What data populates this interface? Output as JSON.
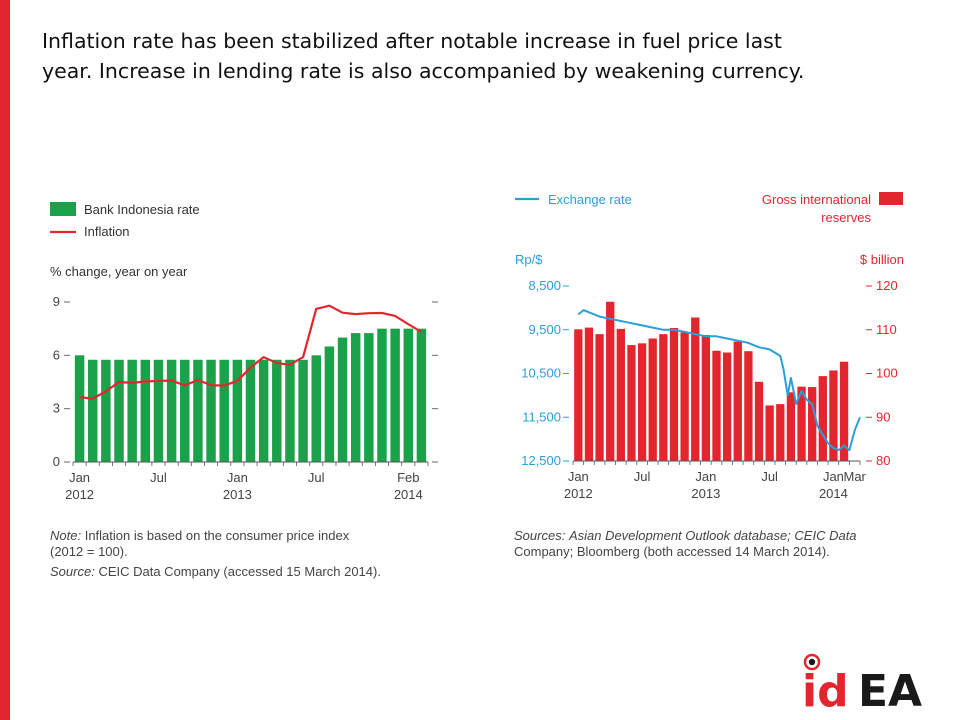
{
  "slide": {
    "headline_line1": "Inflation rate has been stabilized after notable increase in fuel price last",
    "headline_line2": "year. Increase in lending rate is also accompanied by weakening currency.",
    "accent_color": "#e3262e"
  },
  "chart_data": [
    {
      "type": "bar",
      "legend": [
        {
          "name": "Bank Indonesia rate",
          "color": "#1aa14a",
          "kind": "bar"
        },
        {
          "name": "Inflation",
          "color": "#e3262e",
          "kind": "line"
        }
      ],
      "ylabel": "% change, year on year",
      "ylim": [
        0,
        9
      ],
      "yticks": [
        "9",
        "6",
        "3",
        "0"
      ],
      "xticks": [
        {
          "line1": "Jan",
          "line2": "2012",
          "index": 0
        },
        {
          "line1": "Jul",
          "line2": "",
          "index": 6
        },
        {
          "line1": "Jan",
          "line2": "2013",
          "index": 12
        },
        {
          "line1": "Jul",
          "line2": "",
          "index": 18
        },
        {
          "line1": "Feb",
          "line2": "2014",
          "index": 25
        }
      ],
      "series": [
        {
          "name": "Bank Indonesia rate",
          "values": [
            6.0,
            5.75,
            5.75,
            5.75,
            5.75,
            5.75,
            5.75,
            5.75,
            5.75,
            5.75,
            5.75,
            5.75,
            5.75,
            5.75,
            5.75,
            5.75,
            5.75,
            5.75,
            6.0,
            6.5,
            7.0,
            7.25,
            7.25,
            7.5,
            7.5,
            7.5,
            7.5
          ]
        },
        {
          "name": "Inflation",
          "values": [
            3.65,
            3.56,
            3.97,
            4.5,
            4.45,
            4.53,
            4.56,
            4.58,
            4.31,
            4.61,
            4.32,
            4.3,
            4.57,
            5.31,
            5.9,
            5.57,
            5.47,
            5.9,
            8.61,
            8.79,
            8.4,
            8.32,
            8.37,
            8.38,
            8.22,
            7.75,
            7.32
          ]
        }
      ],
      "note": "Inflation is based on the consumer price index",
      "note_line2": "(2012 = 100).",
      "note_prefix": "Note:",
      "source_prefix": "Source:",
      "source": "CEIC Data Company (accessed 15 March 2014)."
    },
    {
      "type": "bar",
      "legend": [
        {
          "name": "Exchange rate",
          "color": "#2a9fd8",
          "kind": "line"
        },
        {
          "name": "Gross international",
          "name_line2": "reserves",
          "color": "#e3262e",
          "kind": "bar"
        }
      ],
      "ylabel_left": "Rp/$",
      "ylabel_right": "$ billion",
      "ylim_left": [
        12500,
        8500
      ],
      "ylim_right": [
        80,
        120
      ],
      "yticks_left": [
        "8,500",
        "9,500",
        "10,500",
        "11,500",
        "12,500"
      ],
      "yticks_right": [
        "120",
        "110",
        "100",
        "90",
        "80"
      ],
      "xticks": [
        {
          "line1": "Jan",
          "line2": "2012",
          "index": 0
        },
        {
          "line1": "Jul",
          "line2": "",
          "index": 6
        },
        {
          "line1": "Jan",
          "line2": "2013",
          "index": 12
        },
        {
          "line1": "Jul",
          "line2": "",
          "index": 18
        },
        {
          "line1": "Jan",
          "line2": "2014",
          "index": 24
        },
        {
          "line1": "Mar",
          "line2": "",
          "index": 26
        }
      ],
      "series": [
        {
          "name": "Gross international reserves",
          "axis": "right",
          "values": [
            110.1,
            110.5,
            109.0,
            116.4,
            110.2,
            106.5,
            106.9,
            108.0,
            109.0,
            110.4,
            109.4,
            112.8,
            108.8,
            105.2,
            104.8,
            107.3,
            105.1,
            98.1,
            92.7,
            93.0,
            95.7,
            97.0,
            96.9,
            99.4,
            100.7,
            102.7
          ]
        },
        {
          "name": "Exchange rate",
          "axis": "left",
          "points": [
            [
              0,
              9150
            ],
            [
              0.5,
              9050
            ],
            [
              1,
              9100
            ],
            [
              1.5,
              9150
            ],
            [
              2,
              9200
            ],
            [
              3,
              9250
            ],
            [
              4,
              9300
            ],
            [
              5,
              9350
            ],
            [
              6,
              9400
            ],
            [
              7,
              9450
            ],
            [
              8,
              9500
            ],
            [
              9,
              9500
            ],
            [
              10,
              9550
            ],
            [
              11,
              9600
            ],
            [
              12,
              9650
            ],
            [
              13,
              9650
            ],
            [
              14,
              9700
            ],
            [
              15,
              9750
            ],
            [
              16,
              9800
            ],
            [
              17,
              9900
            ],
            [
              18,
              9950
            ],
            [
              19,
              10100
            ],
            [
              19.3,
              10400
            ],
            [
              19.7,
              11000
            ],
            [
              20,
              10600
            ],
            [
              20.5,
              11200
            ],
            [
              21,
              10900
            ],
            [
              21.5,
              11100
            ],
            [
              22,
              11200
            ],
            [
              22.5,
              11700
            ],
            [
              23,
              11900
            ],
            [
              23.5,
              12100
            ],
            [
              24,
              12200
            ],
            [
              24.5,
              12250
            ],
            [
              25,
              12150
            ],
            [
              25.5,
              12250
            ],
            [
              26,
              11800
            ],
            [
              26.5,
              11500
            ]
          ]
        }
      ],
      "source_prefix": "Sources:",
      "source": "Asian Development Outlook database; CEIC Data",
      "source_line2": "Company; Bloomberg (both accessed 14 March 2014)."
    }
  ],
  "logo": {
    "text_1": "id",
    "text_2": "EA",
    "colors": {
      "red": "#e3262e",
      "dark": "#1a1a1a"
    }
  }
}
